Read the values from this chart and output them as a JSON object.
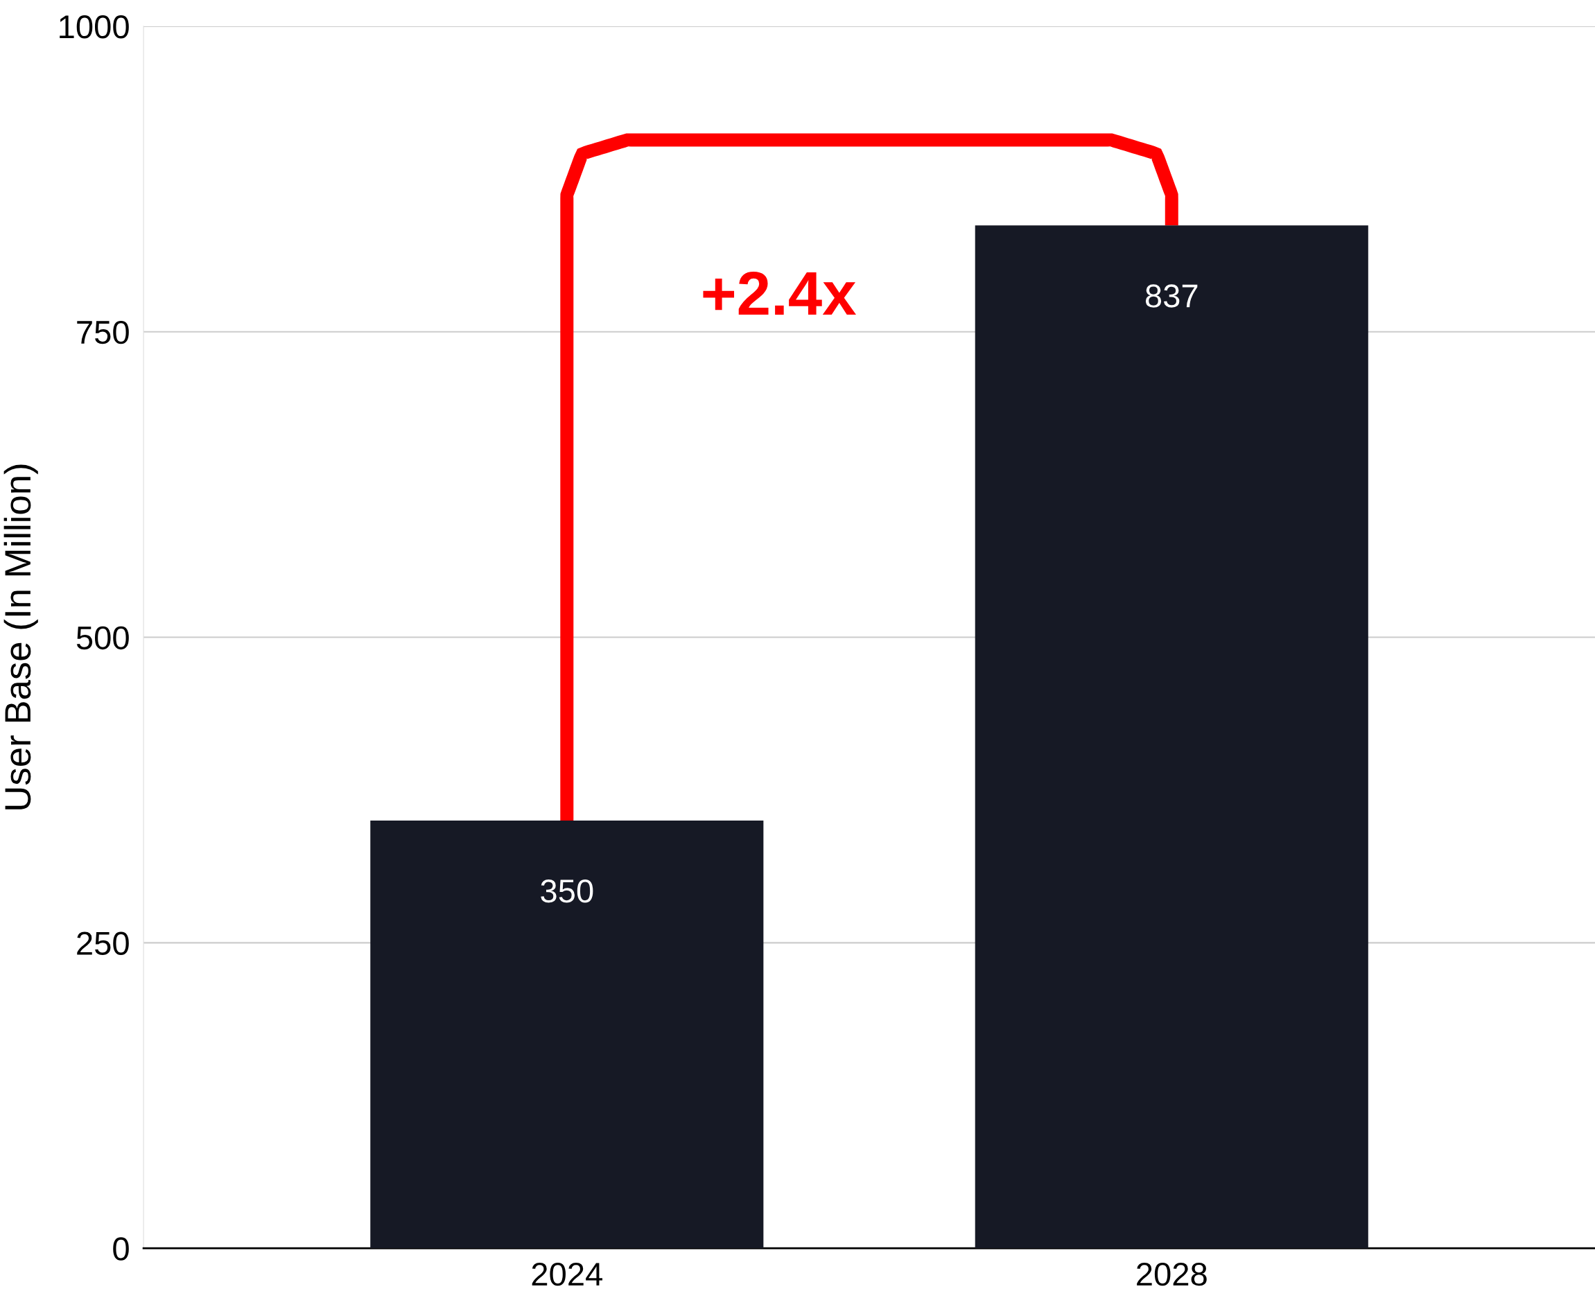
{
  "chart_data": {
    "type": "bar",
    "ylabel": "User Base (In Million)",
    "categories": [
      "2024",
      "2028"
    ],
    "values": [
      350,
      837
    ],
    "color": "#161925",
    "ylim": [
      0,
      1000
    ],
    "yticks": [
      0,
      250,
      500,
      750,
      1000
    ],
    "grid": "y",
    "data_labels": true,
    "annotations": [
      "+2.4x"
    ]
  }
}
